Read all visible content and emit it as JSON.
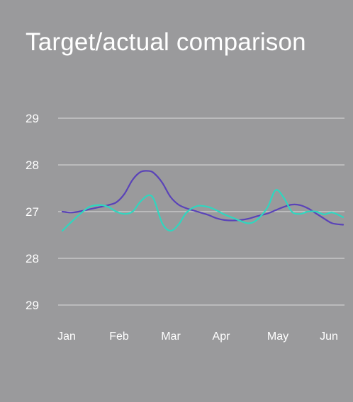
{
  "title": "Target/actual comparison",
  "colors": {
    "background": "#9a9a9c",
    "grid": "#e8e8e8",
    "target": "#5a43b8",
    "actual": "#2fd6bf"
  },
  "chart_data": {
    "type": "line",
    "title": "Target/actual comparison",
    "xlabel": "",
    "ylabel": "",
    "grid": true,
    "legend": "none",
    "y_tick_labels": [
      "29",
      "28",
      "27",
      "28",
      "29"
    ],
    "x_tick_labels": [
      "Jan",
      "Feb",
      "Mar",
      "Apr",
      "May",
      "Jun"
    ],
    "x": [
      0,
      0.15,
      0.3,
      0.5,
      0.7,
      0.85,
      1.0,
      1.15,
      1.3,
      1.45,
      1.6,
      1.7,
      1.85,
      2.0,
      2.15,
      2.3,
      2.5,
      2.7,
      2.85,
      3.0,
      3.15,
      3.3,
      3.45,
      3.6,
      3.8,
      3.95,
      4.1,
      4.25,
      4.4,
      4.55,
      4.7,
      4.85,
      5.0,
      5.2
    ],
    "ylim": [
      0,
      4
    ],
    "series": [
      {
        "values": [
          2.0,
          1.98,
          2.0,
          2.05,
          2.1,
          2.14,
          2.2,
          2.38,
          2.68,
          2.85,
          2.87,
          2.82,
          2.62,
          2.32,
          2.15,
          2.07,
          2.0,
          1.93,
          1.86,
          1.82,
          1.81,
          1.82,
          1.85,
          1.9,
          1.96,
          2.03,
          2.1,
          2.15,
          2.14,
          2.07,
          1.96,
          1.85,
          1.75,
          1.72
        ]
      },
      {
        "values": [
          1.59,
          1.76,
          1.92,
          2.1,
          2.14,
          2.1,
          2.0,
          1.95,
          2.0,
          2.22,
          2.35,
          2.25,
          1.75,
          1.59,
          1.72,
          1.98,
          2.12,
          2.1,
          2.03,
          1.94,
          1.87,
          1.8,
          1.75,
          1.82,
          2.09,
          2.46,
          2.3,
          2.0,
          1.95,
          2.0,
          2.0,
          1.94,
          1.98,
          1.88
        ]
      }
    ]
  }
}
